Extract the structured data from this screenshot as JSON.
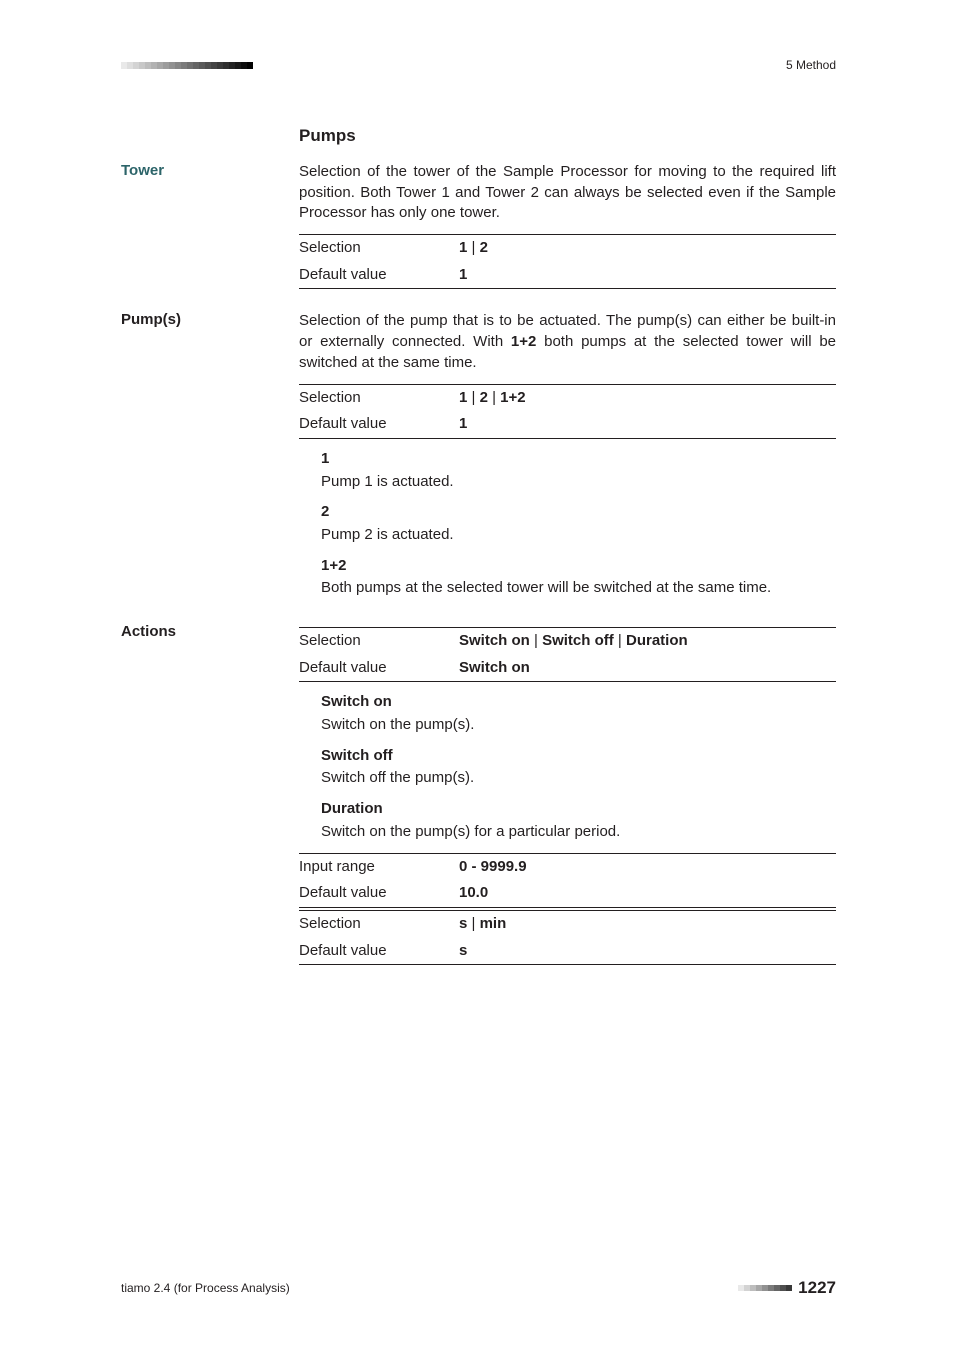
{
  "header": {
    "bar_segments": [
      {
        "w": 6,
        "c": "#e9e9e9"
      },
      {
        "w": 6,
        "c": "#dedede"
      },
      {
        "w": 6,
        "c": "#d3d3d3"
      },
      {
        "w": 6,
        "c": "#c8c8c8"
      },
      {
        "w": 6,
        "c": "#bdbdbd"
      },
      {
        "w": 6,
        "c": "#b2b2b2"
      },
      {
        "w": 6,
        "c": "#a7a7a7"
      },
      {
        "w": 6,
        "c": "#9c9c9c"
      },
      {
        "w": 6,
        "c": "#919191"
      },
      {
        "w": 6,
        "c": "#868686"
      },
      {
        "w": 6,
        "c": "#7b7b7b"
      },
      {
        "w": 6,
        "c": "#707070"
      },
      {
        "w": 6,
        "c": "#656565"
      },
      {
        "w": 6,
        "c": "#5a5a5a"
      },
      {
        "w": 6,
        "c": "#4f4f4f"
      },
      {
        "w": 6,
        "c": "#444444"
      },
      {
        "w": 6,
        "c": "#393939"
      },
      {
        "w": 6,
        "c": "#2e2e2e"
      },
      {
        "w": 6,
        "c": "#232323"
      },
      {
        "w": 6,
        "c": "#181818"
      },
      {
        "w": 6,
        "c": "#0d0d0d"
      },
      {
        "w": 6,
        "c": "#020202"
      }
    ],
    "breadcrumb": "5 Method"
  },
  "section_heading": "Pumps",
  "tower": {
    "label": "Tower",
    "para": "Selection of the tower of the Sample Processor for moving to the required lift position. Both Tower 1 and Tower 2 can always be selected even if the Sample Processor has only one tower.",
    "selection_label": "Selection",
    "selection_value": "1 | 2",
    "default_label": "Default value",
    "default_value": "1"
  },
  "pumps_param": {
    "label": "Pump(s)",
    "para": "Selection of the pump that is to be actuated. The pump(s) can either be built-in or externally connected. With ",
    "para_bold": "1+2",
    "para_after": " both pumps at the selected tower will be switched at the same time.",
    "selection_label": "Selection",
    "selection_value": "1 | 2 | 1+2",
    "default_label": "Default value",
    "default_value": "1",
    "opt1_term": "1",
    "opt1_desc": "Pump 1 is actuated.",
    "opt2_term": "2",
    "opt2_desc": "Pump 2 is actuated.",
    "opt3_term": "1+2",
    "opt3_desc": "Both pumps at the selected tower will be switched at the same time."
  },
  "actions": {
    "label": "Actions",
    "selection_label": "Selection",
    "selection_value": "Switch on | Switch off | Duration",
    "default_label": "Default value",
    "default_value": "Switch on",
    "opt1_term": "Switch on",
    "opt1_desc": "Switch on the pump(s).",
    "opt2_term": "Switch off",
    "opt2_desc": "Switch off the pump(s).",
    "opt3_term": "Duration",
    "opt3_desc": "Switch on the pump(s) for a particular period.",
    "range_label": "Input range",
    "range_value": "0 - 9999.9",
    "range_default_label": "Default value",
    "range_default_value": "10.0",
    "unit_sel_label": "Selection",
    "unit_sel_value": "s | min",
    "unit_default_label": "Default value",
    "unit_default_value": "s"
  },
  "footer": {
    "left": "tiamo 2.4 (for Process Analysis)",
    "bar_segments": [
      {
        "w": 6,
        "c": "#e9e9e9"
      },
      {
        "w": 6,
        "c": "#d3d3d3"
      },
      {
        "w": 6,
        "c": "#bdbdbd"
      },
      {
        "w": 6,
        "c": "#a7a7a7"
      },
      {
        "w": 6,
        "c": "#919191"
      },
      {
        "w": 6,
        "c": "#7b7b7b"
      },
      {
        "w": 6,
        "c": "#656565"
      },
      {
        "w": 6,
        "c": "#4f4f4f"
      },
      {
        "w": 6,
        "c": "#393939"
      }
    ],
    "page": "1227"
  }
}
